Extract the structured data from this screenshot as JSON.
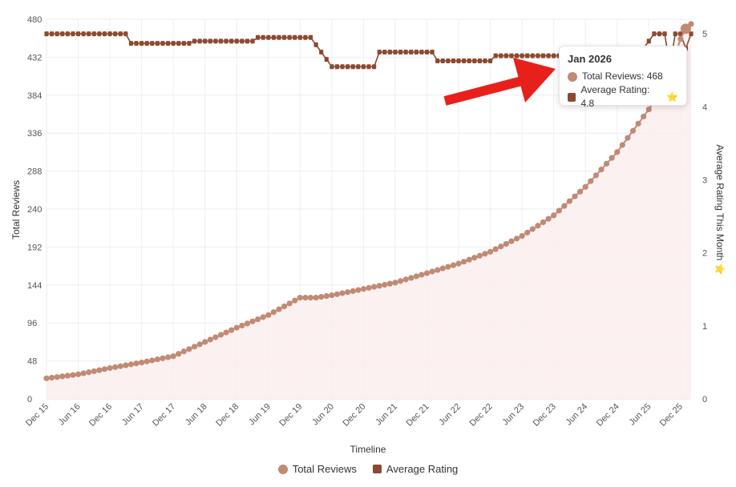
{
  "colors": {
    "total_reviews": "#c08a74",
    "average_rating": "#8b4a30",
    "arrow": "#e8201c",
    "grid": "#eeeeee",
    "area_fill": "#fbeeee"
  },
  "chart_data": {
    "type": "line",
    "xlabel": "Timeline",
    "ylabel_left": "Total Reviews",
    "ylabel_right": "Average Rating This Month ⭐",
    "y_left_range": [
      0,
      480
    ],
    "y_left_ticks": [
      "0",
      "48",
      "96",
      "144",
      "192",
      "240",
      "288",
      "336",
      "384",
      "432",
      "480"
    ],
    "y_right_range": [
      0,
      5.2
    ],
    "y_right_ticks": [
      "0",
      "1",
      "2",
      "3",
      "4",
      "5"
    ],
    "x_ticks": [
      "Dec 15",
      "Jun 16",
      "Dec 16",
      "Jun 17",
      "Dec 17",
      "Jun 18",
      "Dec 18",
      "Jun 19",
      "Dec 19",
      "Jun 20",
      "Dec 20",
      "Jun 21",
      "Dec 21",
      "Jun 22",
      "Dec 22",
      "Jun 23",
      "Dec 23",
      "Jun 24",
      "Dec 24",
      "Jun 25",
      "Dec 25"
    ],
    "x_months_range": [
      0,
      122
    ],
    "grid": true,
    "legend_position": "bottom",
    "series": [
      {
        "name": "Total Reviews",
        "axis": "left",
        "points": [
          [
            0,
            26
          ],
          [
            6,
            31
          ],
          [
            12,
            39
          ],
          [
            18,
            46
          ],
          [
            24,
            54
          ],
          [
            30,
            72
          ],
          [
            36,
            90
          ],
          [
            42,
            106
          ],
          [
            48,
            128
          ],
          [
            51,
            128
          ],
          [
            54,
            131
          ],
          [
            60,
            139
          ],
          [
            66,
            147
          ],
          [
            72,
            159
          ],
          [
            78,
            171
          ],
          [
            84,
            186
          ],
          [
            90,
            206
          ],
          [
            96,
            232
          ],
          [
            102,
            268
          ],
          [
            108,
            312
          ],
          [
            114,
            366
          ],
          [
            117,
            398
          ],
          [
            119,
            435
          ],
          [
            120,
            455
          ],
          [
            121,
            468
          ],
          [
            122,
            474
          ]
        ]
      },
      {
        "name": "Average Rating",
        "axis": "right",
        "points": [
          [
            0,
            5.0
          ],
          [
            15,
            5.0
          ],
          [
            16,
            4.87
          ],
          [
            27,
            4.87
          ],
          [
            28,
            4.9
          ],
          [
            39,
            4.9
          ],
          [
            40,
            4.95
          ],
          [
            50,
            4.95
          ],
          [
            54,
            4.55
          ],
          [
            62,
            4.55
          ],
          [
            63,
            4.75
          ],
          [
            73,
            4.75
          ],
          [
            74,
            4.63
          ],
          [
            84,
            4.63
          ],
          [
            85,
            4.7
          ],
          [
            112,
            4.7
          ],
          [
            115,
            5.0
          ],
          [
            117,
            5.0
          ],
          [
            118,
            4.55
          ],
          [
            119,
            5.0
          ],
          [
            120,
            5.0
          ],
          [
            121,
            4.8
          ],
          [
            122,
            5.0
          ]
        ]
      }
    ]
  },
  "tooltip": {
    "title": "Jan 2026",
    "total_label": "Total Reviews: 468",
    "rating_label": "Average Rating: 4.8",
    "star": "⭐"
  },
  "legend": {
    "total": "Total Reviews",
    "rating": "Average Rating"
  }
}
